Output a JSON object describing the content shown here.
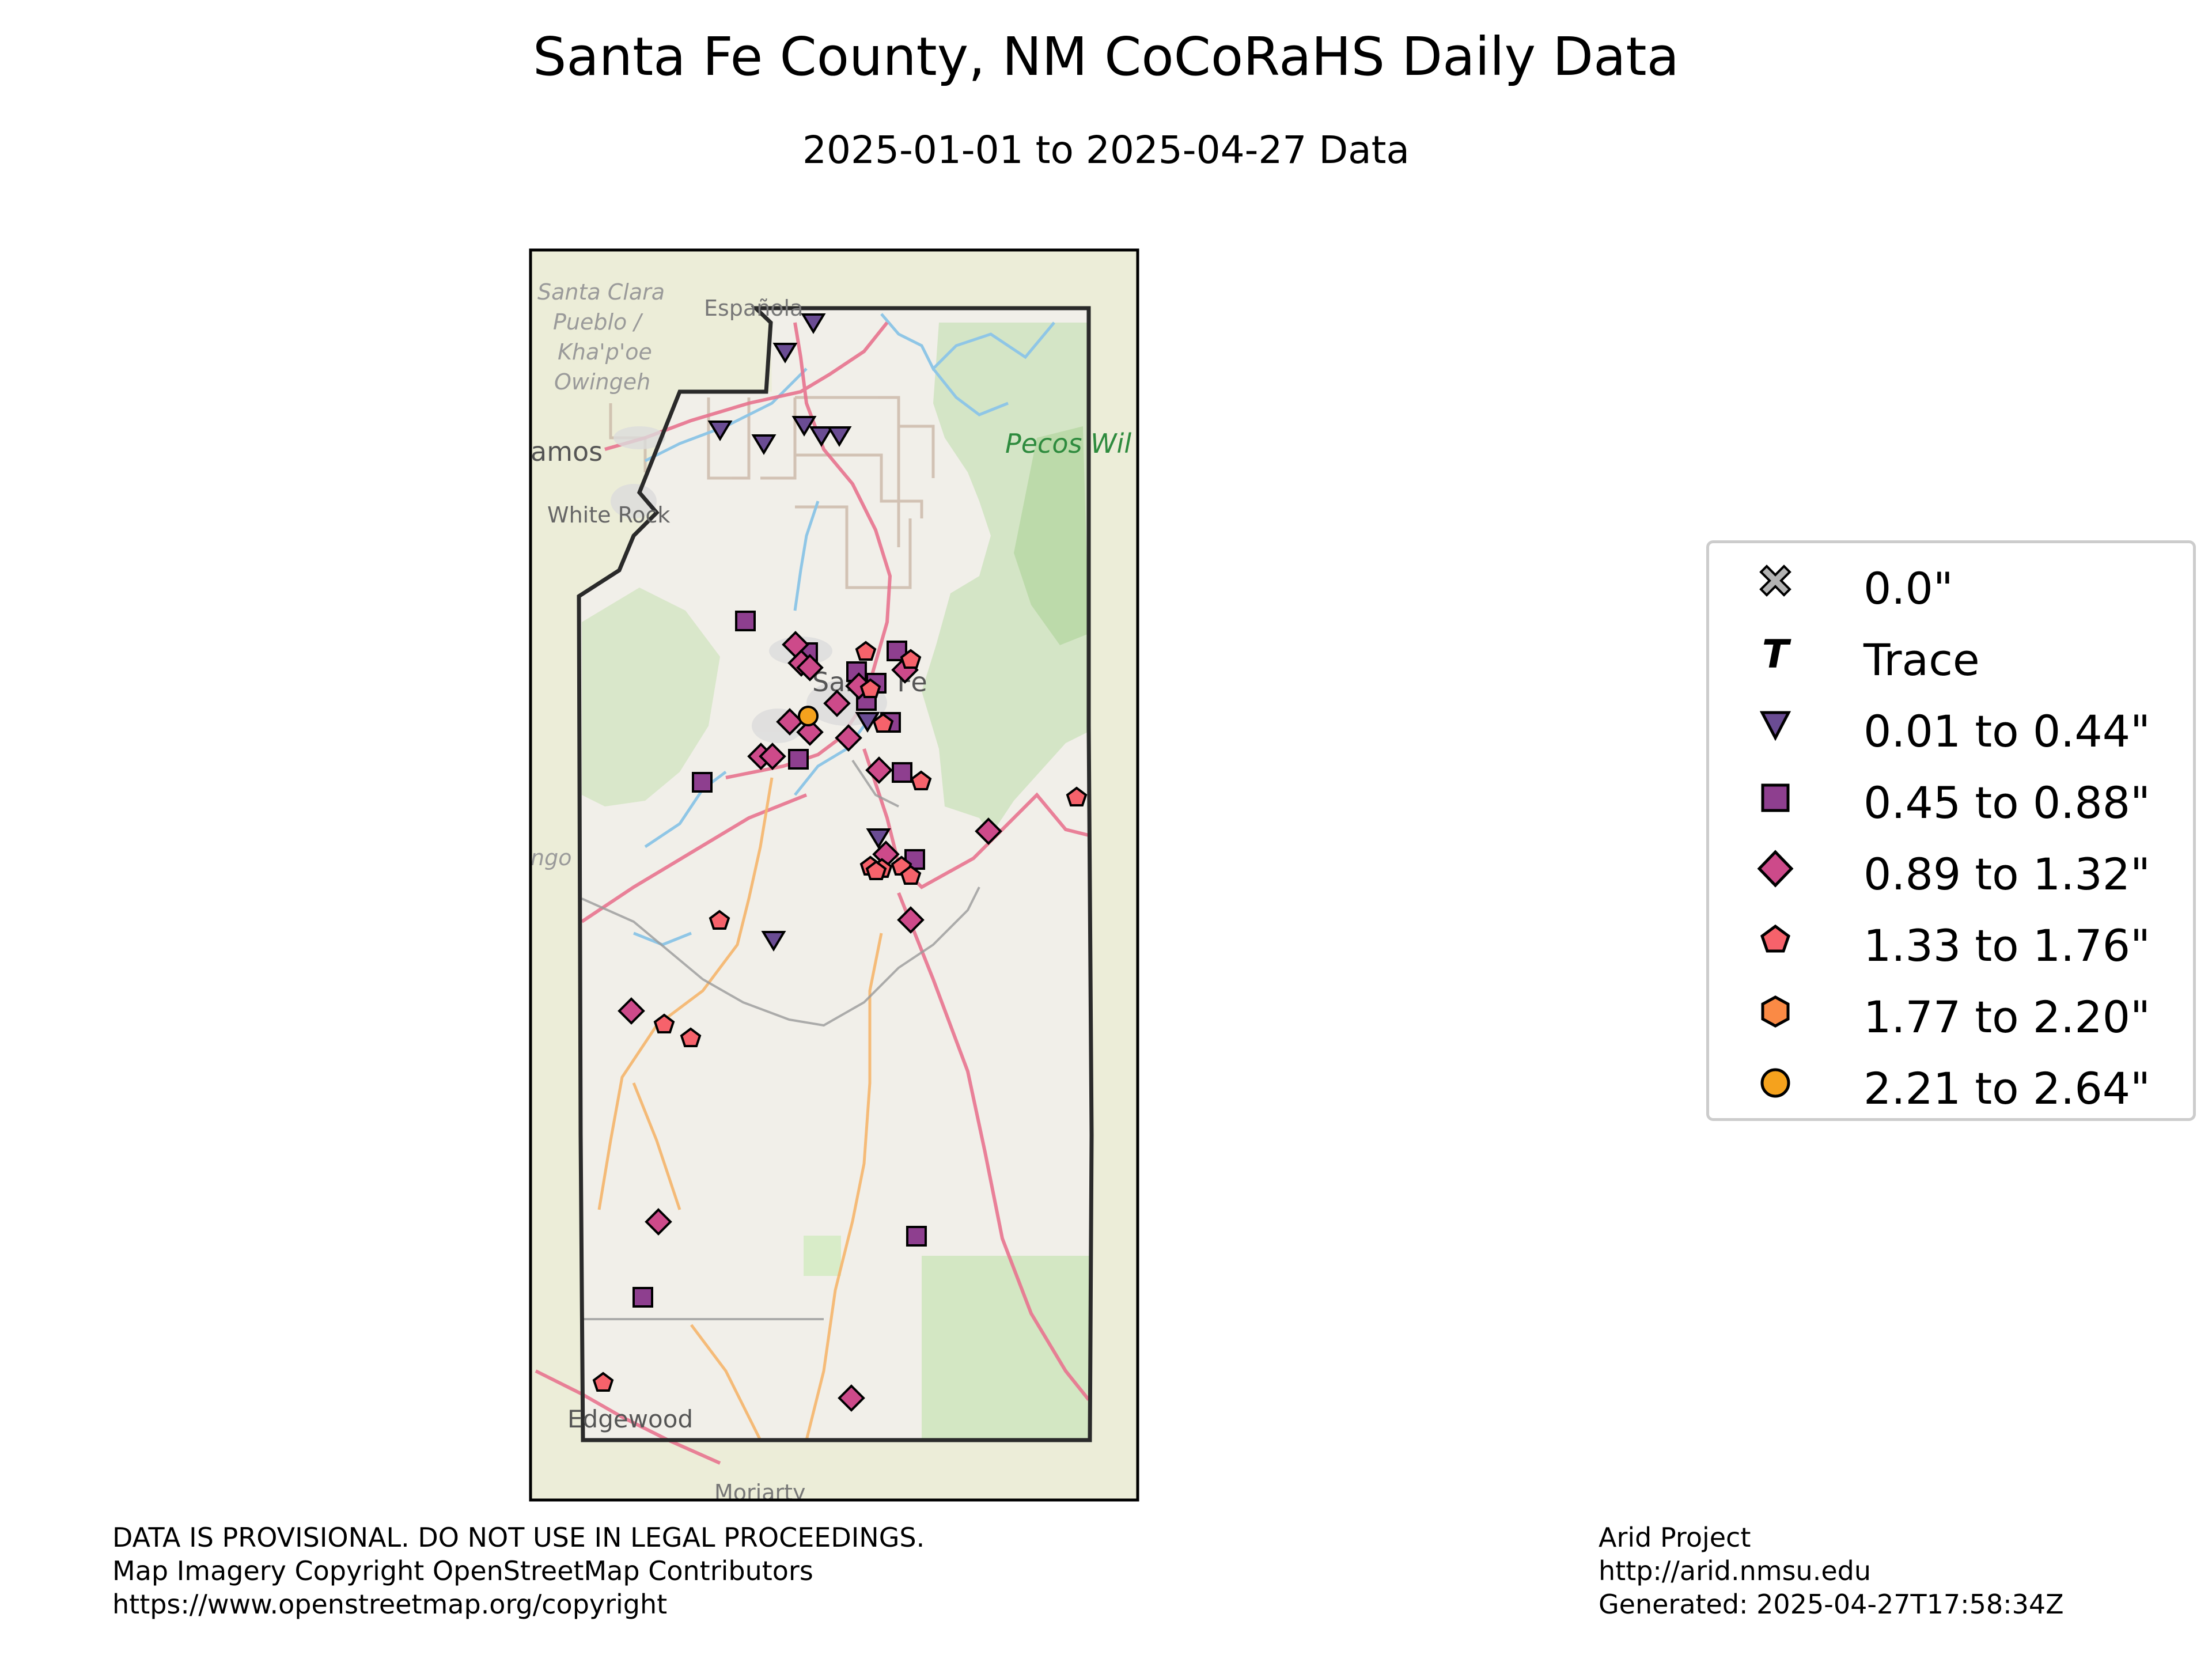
{
  "title": "Santa Fe County, NM CoCoRaHS Daily Data",
  "subtitle": "2025-01-01 to 2025-04-27 Data",
  "map_labels": {
    "santa_clara": "Santa Clara",
    "pueblo": "Pueblo /",
    "khapoe": "Kha'p'oe",
    "owingeh": "Owingeh",
    "espanola": "Española",
    "los_alamos": "amos",
    "white_rock": "White Rock",
    "pecos": "Pecos Wil",
    "santa_fe": "Santa Fe",
    "edgewood": "Edgewood",
    "moriarty": "Moriarty",
    "left_edge": "ngo"
  },
  "legend": {
    "items": [
      {
        "label": "0.0\"",
        "symbol": "x-cross",
        "color": "#b3b3b3"
      },
      {
        "label": "Trace",
        "symbol": "letter-T",
        "color": "#000000"
      },
      {
        "label": "0.01 to 0.44\"",
        "symbol": "triangle-down",
        "color": "#6a4c93"
      },
      {
        "label": "0.45 to 0.88\"",
        "symbol": "square",
        "color": "#8e3f8f"
      },
      {
        "label": "0.89 to 1.32\"",
        "symbol": "diamond",
        "color": "#cd4a8a"
      },
      {
        "label": "1.33 to 1.76\"",
        "symbol": "pentagon",
        "color": "#f6626b"
      },
      {
        "label": "1.77 to 2.20\"",
        "symbol": "hexagon",
        "color": "#fa8a45"
      },
      {
        "label": "2.21 to 2.64\"",
        "symbol": "circle",
        "color": "#f5a21d"
      }
    ]
  },
  "footer": {
    "left": [
      "DATA IS PROVISIONAL. DO NOT USE IN LEGAL PROCEEDINGS.",
      "Map Imagery Copyright OpenStreetMap Contributors",
      "https://www.openstreetmap.org/copyright"
    ],
    "right": [
      "Arid Project",
      "http://arid.nmsu.edu",
      "Generated: 2025-04-27T17:58:34Z"
    ]
  }
}
